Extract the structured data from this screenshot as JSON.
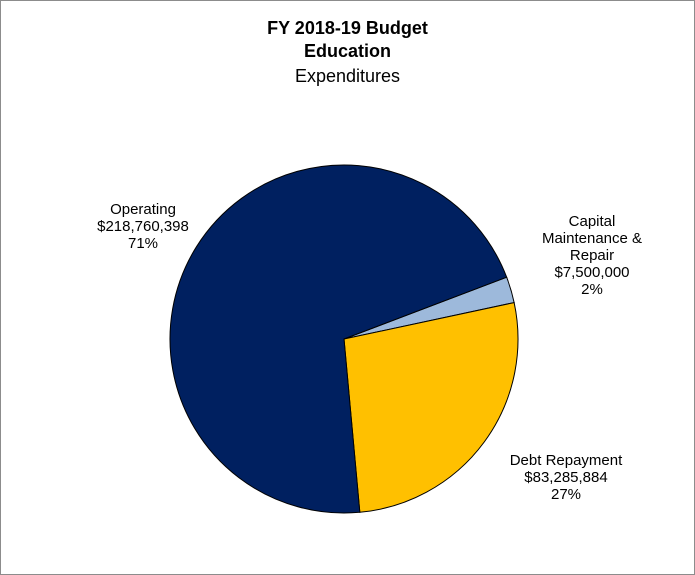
{
  "chart_data": {
    "type": "pie",
    "title": "FY 2018-19 Budget",
    "subtitle": "Education",
    "subtitle2": "Expenditures",
    "slices": [
      {
        "label_lines": [
          "Operating"
        ],
        "amount": "$218,760,398",
        "percent": "71%",
        "value": 218760398,
        "color": "#002060"
      },
      {
        "label_lines": [
          "Capital",
          "Maintenance &",
          "Repair"
        ],
        "amount": "$7,500,000",
        "percent": "2%",
        "value": 7500000,
        "color": "#9DB9DB"
      },
      {
        "label_lines": [
          "Debt Repayment"
        ],
        "amount": "$83,285,884",
        "percent": "27%",
        "value": 83285884,
        "color": "#FFC000"
      }
    ]
  }
}
